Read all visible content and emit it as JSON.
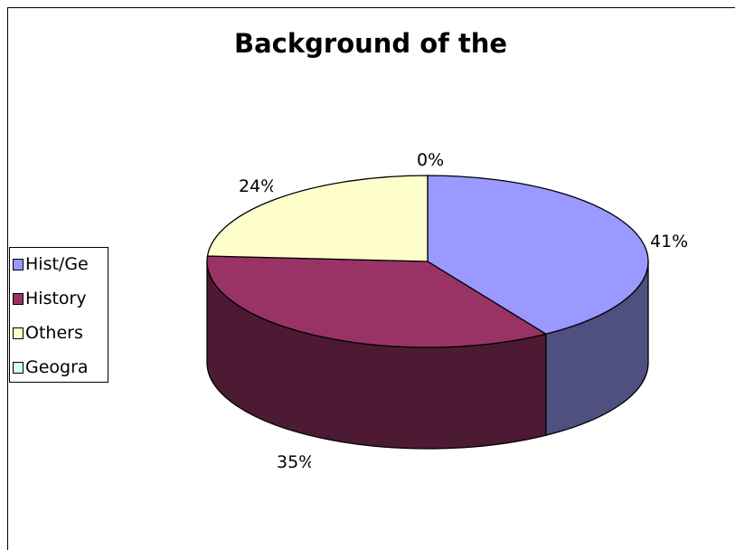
{
  "chart_data": {
    "type": "pie",
    "title": "Background of the",
    "categories": [
      "Hist/Ge",
      "History",
      "Others",
      "Geogra"
    ],
    "values": [
      41,
      35,
      24,
      0
    ],
    "data_labels": [
      "41%",
      "35%",
      "24%",
      "0%"
    ],
    "colors": [
      "#9999FF",
      "#993366",
      "#FFFFCC",
      "#CCFFFF"
    ],
    "side_colors": [
      "#4F4F80",
      "#4D1A33",
      "#80806A",
      "#6A8080"
    ],
    "style": "3d",
    "legend": "left"
  }
}
